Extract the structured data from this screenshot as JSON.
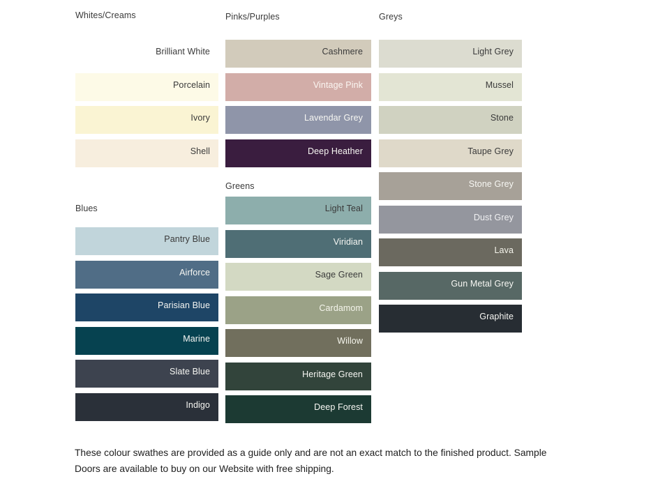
{
  "theme": {
    "page_background": "#FFFFFF",
    "heading_text": "#3A3A3A",
    "dark_label_text": "#3A3A3A",
    "light_label_text": "#F7F7F3",
    "footer_text": "#1E1E1E"
  },
  "groups": [
    {
      "label": "Whites/Creams",
      "swatches": [
        {
          "name": "Brilliant White",
          "color": "#FFFFFF",
          "label_color": "#3A3A3A"
        },
        {
          "name": "Porcelain",
          "color": "#FDFAE7",
          "label_color": "#3A3A3A"
        },
        {
          "name": "Ivory",
          "color": "#FAF4D3",
          "label_color": "#3A3A3A"
        },
        {
          "name": "Shell",
          "color": "#F7EEDE",
          "label_color": "#3A3A3A"
        }
      ]
    },
    {
      "label": "Blues",
      "swatches": [
        {
          "name": "Pantry Blue",
          "color": "#C1D5DB",
          "label_color": "#3A3A3A"
        },
        {
          "name": "Airforce",
          "color": "#506D86",
          "label_color": "#F7F7F3"
        },
        {
          "name": "Parisian Blue",
          "color": "#1E4566",
          "label_color": "#F7F7F3"
        },
        {
          "name": "Marine",
          "color": "#064250",
          "label_color": "#F7F7F3"
        },
        {
          "name": "Slate Blue",
          "color": "#3D434F",
          "label_color": "#F7F7F3"
        },
        {
          "name": "Indigo",
          "color": "#2A3039",
          "label_color": "#F7F7F3"
        }
      ]
    },
    {
      "label": "Pinks/Purples",
      "swatches": [
        {
          "name": "Cashmere",
          "color": "#D2CBBB",
          "label_color": "#3A3A3A"
        },
        {
          "name": "Vintage Pink",
          "color": "#D2ADA8",
          "label_color": "#FBF6F2"
        },
        {
          "name": "Lavendar Grey",
          "color": "#8F95A9",
          "label_color": "#F7F7F3"
        },
        {
          "name": "Deep Heather",
          "color": "#3A1D3F",
          "label_color": "#F7F7F3"
        }
      ]
    },
    {
      "label": "Greens",
      "swatches": [
        {
          "name": "Light Teal",
          "color": "#8DAEAC",
          "label_color": "#3A3A3A"
        },
        {
          "name": "Viridian",
          "color": "#4F6E75",
          "label_color": "#F7F7F3"
        },
        {
          "name": "Sage Green",
          "color": "#D3D9C3",
          "label_color": "#3A3A3A"
        },
        {
          "name": "Cardamom",
          "color": "#9BA287",
          "label_color": "#F5F5EC"
        },
        {
          "name": "Willow",
          "color": "#716F5D",
          "label_color": "#F5F5EC"
        },
        {
          "name": "Heritage Green",
          "color": "#32443B",
          "label_color": "#F7F7F3"
        },
        {
          "name": "Deep Forest",
          "color": "#1C3A33",
          "label_color": "#F7F7F3"
        }
      ]
    },
    {
      "label": "Greys",
      "swatches": [
        {
          "name": "Light Grey",
          "color": "#DCDCD0",
          "label_color": "#3A3A3A"
        },
        {
          "name": "Mussel",
          "color": "#E3E5D4",
          "label_color": "#3A3A3A"
        },
        {
          "name": "Stone",
          "color": "#D0D2C1",
          "label_color": "#3A3A3A"
        },
        {
          "name": "Taupe Grey",
          "color": "#DFD9C9",
          "label_color": "#3A3A3A"
        },
        {
          "name": "Stone Grey",
          "color": "#A7A198",
          "label_color": "#F7F7F3"
        },
        {
          "name": "Dust Grey",
          "color": "#94969E",
          "label_color": "#F0F0F2"
        },
        {
          "name": "Lava",
          "color": "#6B695F",
          "label_color": "#F5F5EC"
        },
        {
          "name": "Gun Metal Grey",
          "color": "#576865",
          "label_color": "#F7F7F3"
        },
        {
          "name": "Graphite",
          "color": "#272D33",
          "label_color": "#F7F7F3"
        }
      ]
    }
  ],
  "footer": {
    "lines": [
      "These colour swathes are provided as a guide only and are not an exact match to the finished product.  Sample",
      "Doors are available to buy on our Website with free shipping."
    ]
  }
}
